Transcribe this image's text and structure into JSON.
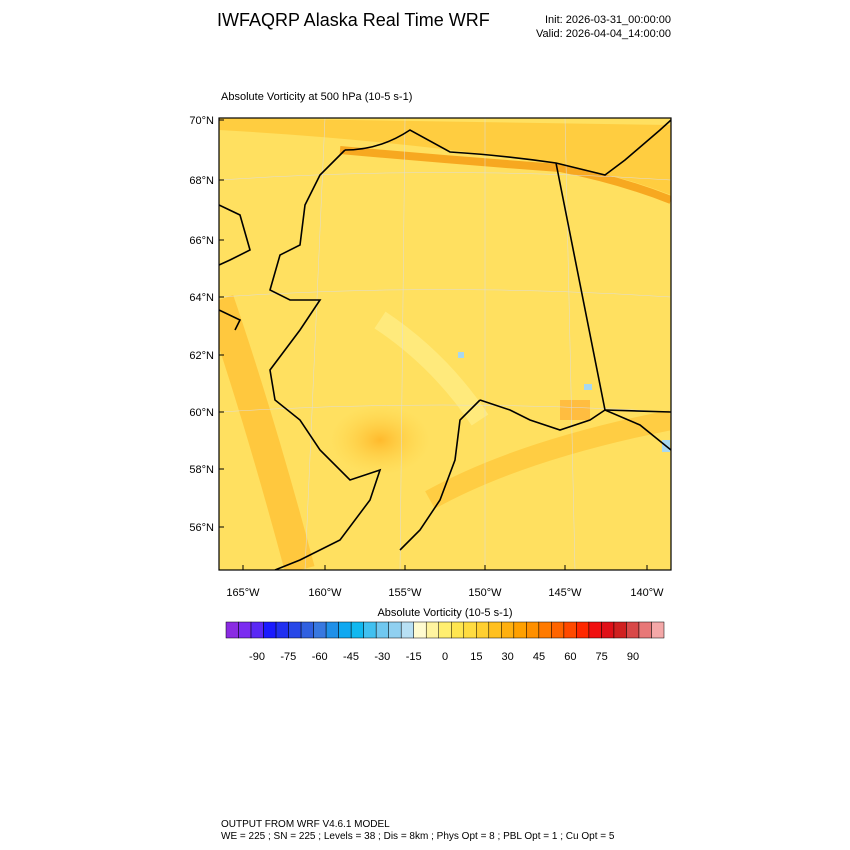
{
  "header": {
    "title": "IWFAQRP Alaska Real Time WRF",
    "init": "Init: 2026-03-31_00:00:00",
    "valid": "Valid: 2026-04-04_14:00:00"
  },
  "map": {
    "title": "Absolute Vorticity at 500 hPa   (10-5 s-1)",
    "lat_labels": [
      "70°N",
      "68°N",
      "66°N",
      "64°N",
      "62°N",
      "60°N",
      "58°N",
      "56°N"
    ],
    "lon_labels": [
      "165°W",
      "160°W",
      "155°W",
      "150°W",
      "145°W",
      "140°W"
    ]
  },
  "colorbar": {
    "title": "Absolute Vorticity  (10-5 s-1)",
    "colors": [
      "#8a2be2",
      "#7b2cf0",
      "#5a28f5",
      "#1a1aff",
      "#2030f0",
      "#2848e8",
      "#3060e0",
      "#3878e0",
      "#2090e8",
      "#10a8f0",
      "#10b8f0",
      "#40c0f0",
      "#70c8f0",
      "#90d0f0",
      "#b8e0f4",
      "#fffbd0",
      "#fff4a0",
      "#ffee70",
      "#ffe650",
      "#ffdc40",
      "#ffd030",
      "#ffc020",
      "#ffb010",
      "#ffa000",
      "#ff9000",
      "#ff7a00",
      "#ff6400",
      "#ff4a00",
      "#ff2800",
      "#f01010",
      "#e01018",
      "#d02020",
      "#d84848",
      "#e87878",
      "#f4a8a8"
    ],
    "labels": [
      "-90",
      "-75",
      "-60",
      "-45",
      "-30",
      "-15",
      "0",
      "15",
      "30",
      "45",
      "60",
      "75",
      "90"
    ]
  },
  "footer": {
    "line1": "OUTPUT FROM WRF V4.6.1 MODEL",
    "line2": "WE = 225 ; SN = 225 ; Levels = 38 ; Dis = 8km ; Phys Opt = 8 ; PBL Opt = 1 ; Cu Opt = 5"
  }
}
